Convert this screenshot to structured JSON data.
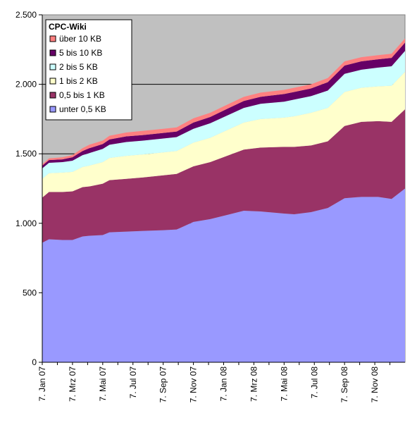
{
  "chart_data": {
    "type": "area",
    "stacked": true,
    "title": "CPC-Wiki",
    "xlabel": "",
    "ylabel": "",
    "ylim": [
      0,
      2500
    ],
    "yticks": [
      0,
      500,
      1000,
      1500,
      2000,
      2500
    ],
    "ytick_labels": [
      "0",
      "500",
      "1.000",
      "1.500",
      "2.000",
      "2.500"
    ],
    "x_tick_labels": [
      "7. Jan 07",
      "7. Mrz 07",
      "7. Mai 07",
      "7. Jul 07",
      "7. Sep 07",
      "7. Nov 07",
      "7. Jan 08",
      "7. Mrz 08",
      "7. Mai 08",
      "7. Jul 08",
      "7. Sep 08",
      "7. Nov 08"
    ],
    "x_tick_index": [
      0,
      9,
      18,
      27,
      36,
      45,
      54,
      63,
      72,
      81,
      90,
      99
    ],
    "x_count": 109,
    "grid": "horizontal",
    "plot_background": "#c0c0c0",
    "legend_position": "top-left",
    "anchors": [
      0,
      2,
      6,
      9,
      12,
      14,
      18,
      20,
      25,
      30,
      36,
      40,
      45,
      50,
      55,
      60,
      65,
      72,
      75,
      80,
      85,
      90,
      95,
      100,
      104,
      108
    ],
    "series": [
      {
        "name": "unter 0,5 KB",
        "color": "#9999ff",
        "values": [
          860,
          885,
          880,
          880,
          905,
          910,
          915,
          935,
          940,
          945,
          950,
          955,
          1010,
          1030,
          1060,
          1090,
          1085,
          1070,
          1065,
          1080,
          1110,
          1180,
          1190,
          1190,
          1175,
          1250
        ]
      },
      {
        "name": "0,5 bis 1 KB",
        "color": "#993366",
        "values": [
          325,
          340,
          345,
          350,
          355,
          355,
          370,
          375,
          380,
          385,
          395,
          400,
          400,
          410,
          425,
          440,
          460,
          480,
          485,
          480,
          480,
          520,
          540,
          545,
          555,
          570
        ]
      },
      {
        "name": "1 bis 2 KB",
        "color": "#ffffcc",
        "values": [
          135,
          135,
          140,
          140,
          145,
          150,
          155,
          160,
          165,
          165,
          165,
          165,
          170,
          175,
          185,
          195,
          205,
          210,
          220,
          235,
          240,
          245,
          245,
          250,
          260,
          270
        ]
      },
      {
        "name": "2 bis 5 KB",
        "color": "#ccffff",
        "values": [
          75,
          75,
          75,
          80,
          85,
          90,
          95,
          95,
          100,
          100,
          100,
          100,
          100,
          105,
          105,
          105,
          110,
          115,
          120,
          120,
          125,
          130,
          130,
          135,
          140,
          150
        ]
      },
      {
        "name": "5 bis 10 KB",
        "color": "#660066",
        "values": [
          20,
          20,
          20,
          25,
          30,
          35,
          35,
          38,
          40,
          40,
          40,
          40,
          45,
          45,
          48,
          50,
          50,
          55,
          55,
          55,
          60,
          60,
          60,
          60,
          60,
          60
        ]
      },
      {
        "name": "über 10 KB",
        "color": "#ff8080",
        "values": [
          10,
          12,
          15,
          15,
          20,
          25,
          25,
          27,
          28,
          30,
          30,
          30,
          30,
          30,
          30,
          30,
          30,
          30,
          30,
          30,
          30,
          30,
          30,
          30,
          30,
          30
        ]
      }
    ]
  }
}
